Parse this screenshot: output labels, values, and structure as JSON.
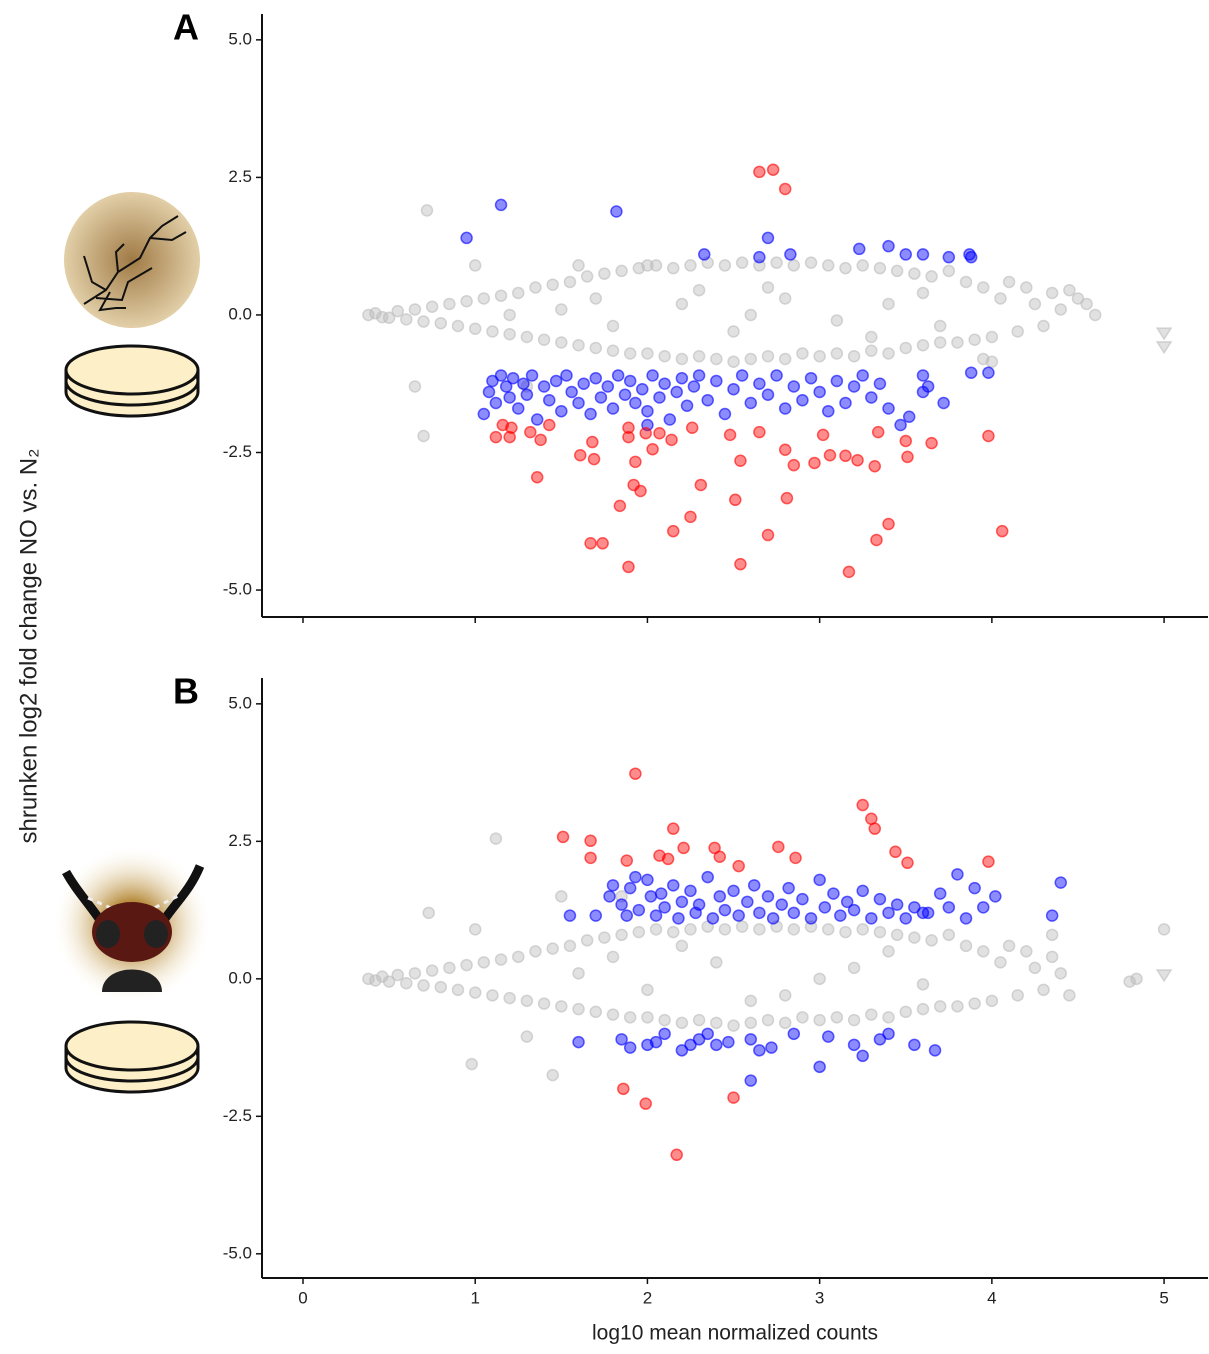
{
  "chart_data": [
    {
      "type": "scatter",
      "panel_label": "A",
      "ylabel": "shrunken log2 fold change NO vs. N₂",
      "xlim": [
        -0.238,
        5.255
      ],
      "ylim": [
        -5.49,
        5.47
      ],
      "xticks": [
        0,
        1,
        2,
        3,
        4,
        5
      ],
      "xtick_labels": false,
      "yticks": [
        {
          "value": 5,
          "label": "5.0"
        },
        2.5,
        {
          "value": 0,
          "label": "0.0"
        },
        -2.5,
        {
          "value": -5,
          "label": "-5.0"
        }
      ],
      "series": [
        {
          "color": "#bdbdbd",
          "x": [
            0.38,
            0.42,
            0.46,
            0.5,
            0.55,
            0.6,
            0.65,
            0.7,
            0.75,
            0.8,
            0.85,
            0.9,
            0.95,
            1.0,
            1.05,
            1.1,
            1.15,
            1.2,
            1.25,
            1.3,
            1.35,
            1.4,
            1.45,
            1.5,
            1.55,
            1.6,
            1.65,
            1.7,
            1.75,
            1.8,
            1.85,
            1.9,
            1.95,
            2.0,
            2.05,
            2.1,
            2.15,
            2.2,
            2.25,
            2.3,
            2.35,
            2.4,
            2.45,
            2.5,
            2.55,
            2.6,
            2.65,
            2.7,
            2.75,
            2.8,
            2.85,
            2.9,
            2.95,
            3.0,
            3.05,
            3.1,
            3.15,
            3.2,
            3.25,
            3.3,
            3.35,
            3.4,
            3.45,
            3.5,
            3.55,
            3.6,
            3.65,
            3.7,
            3.75,
            3.8,
            3.85,
            3.9,
            3.95,
            4.0,
            4.05,
            4.1,
            4.15,
            4.2,
            4.25,
            4.3,
            4.35,
            4.4,
            4.45,
            4.5,
            4.55,
            4.6,
            0.72,
            1.0,
            1.3,
            0.65,
            0.7,
            1.6,
            2.0,
            3.95,
            4.0,
            1.5,
            1.8,
            2.2,
            2.5,
            2.8,
            3.1,
            3.4,
            3.7,
            2.7,
            3.3,
            1.2,
            2.3,
            3.6,
            1.7,
            2.6
          ],
          "values": [
            0.0,
            0.03,
            -0.04,
            -0.05,
            0.07,
            -0.08,
            0.1,
            -0.12,
            0.15,
            -0.15,
            0.2,
            -0.2,
            0.25,
            -0.25,
            0.3,
            -0.3,
            0.35,
            -0.35,
            0.4,
            -0.4,
            0.5,
            -0.45,
            0.55,
            -0.5,
            0.6,
            -0.55,
            0.7,
            -0.6,
            0.75,
            -0.65,
            0.8,
            -0.7,
            0.85,
            -0.7,
            0.9,
            -0.75,
            0.85,
            -0.8,
            0.9,
            -0.75,
            0.95,
            -0.8,
            0.9,
            -0.85,
            0.95,
            -0.8,
            0.9,
            -0.75,
            0.95,
            -0.8,
            0.9,
            -0.7,
            0.95,
            -0.75,
            0.9,
            -0.7,
            0.85,
            -0.75,
            0.9,
            -0.65,
            0.85,
            -0.7,
            0.8,
            -0.6,
            0.75,
            -0.55,
            0.7,
            -0.5,
            0.8,
            -0.5,
            0.6,
            -0.45,
            0.5,
            -0.4,
            0.3,
            0.6,
            -0.3,
            0.5,
            0.2,
            -0.2,
            0.4,
            0.1,
            0.45,
            0.3,
            0.2,
            0.0,
            1.9,
            0.9,
            -1.3,
            -1.3,
            -2.2,
            0.9,
            0.9,
            -0.8,
            -0.85,
            0.1,
            -0.2,
            0.2,
            -0.3,
            0.3,
            -0.1,
            0.2,
            -0.2,
            0.5,
            -0.4,
            0.0,
            0.45,
            0.4,
            0.3,
            0.0
          ]
        },
        {
          "color": "#bdbdbd",
          "marker": "triangle",
          "x": [
            5.0,
            5.0
          ],
          "values": [
            -0.33,
            -0.58
          ]
        },
        {
          "color": "#0000ff",
          "x": [
            0.95,
            1.15,
            1.82,
            2.33,
            2.65,
            2.7,
            2.83,
            3.23,
            3.4,
            3.5,
            3.6,
            3.75,
            3.87,
            3.88,
            1.05,
            1.08,
            1.1,
            1.12,
            1.15,
            1.18,
            1.2,
            1.22,
            1.25,
            1.28,
            1.3,
            1.33,
            1.36,
            1.4,
            1.43,
            1.47,
            1.5,
            1.53,
            1.56,
            1.6,
            1.63,
            1.67,
            1.7,
            1.73,
            1.77,
            1.8,
            1.83,
            1.87,
            1.9,
            1.93,
            1.97,
            2.0,
            2.03,
            2.07,
            2.1,
            2.13,
            2.17,
            2.2,
            2.23,
            2.27,
            2.3,
            2.35,
            2.4,
            2.45,
            2.5,
            2.55,
            2.6,
            2.65,
            2.7,
            2.75,
            2.8,
            2.85,
            2.9,
            2.95,
            3.0,
            3.05,
            3.1,
            3.15,
            3.2,
            3.25,
            3.3,
            3.35,
            3.4,
            3.47,
            3.52,
            3.6,
            3.63,
            3.72,
            3.88,
            3.98,
            3.6,
            2.0
          ],
          "values": [
            1.4,
            2.0,
            1.88,
            1.1,
            1.05,
            1.4,
            1.1,
            1.2,
            1.25,
            1.1,
            1.1,
            1.05,
            1.1,
            1.05,
            -1.8,
            -1.4,
            -1.2,
            -1.6,
            -1.1,
            -1.3,
            -1.5,
            -1.15,
            -1.7,
            -1.25,
            -1.45,
            -1.1,
            -1.9,
            -1.3,
            -1.55,
            -1.2,
            -1.75,
            -1.1,
            -1.4,
            -1.6,
            -1.25,
            -1.8,
            -1.15,
            -1.5,
            -1.3,
            -1.7,
            -1.1,
            -1.45,
            -1.2,
            -1.6,
            -1.35,
            -1.75,
            -1.1,
            -1.5,
            -1.25,
            -1.9,
            -1.4,
            -1.15,
            -1.65,
            -1.3,
            -1.1,
            -1.55,
            -1.2,
            -1.8,
            -1.35,
            -1.1,
            -1.6,
            -1.25,
            -1.45,
            -1.1,
            -1.7,
            -1.3,
            -1.55,
            -1.15,
            -1.4,
            -1.75,
            -1.2,
            -1.6,
            -1.3,
            -1.1,
            -1.5,
            -1.25,
            -1.7,
            -2.0,
            -1.85,
            -1.1,
            -1.3,
            -1.6,
            -1.05,
            -1.05,
            -1.4,
            -2.0
          ]
        },
        {
          "color": "#ff0000",
          "x": [
            2.65,
            2.73,
            2.8,
            1.12,
            1.16,
            1.2,
            1.21,
            1.32,
            1.38,
            1.36,
            1.43,
            1.61,
            1.68,
            1.69,
            1.67,
            1.74,
            1.84,
            1.89,
            1.89,
            1.89,
            1.92,
            1.93,
            1.96,
            1.99,
            2.03,
            2.07,
            2.14,
            2.15,
            2.25,
            2.31,
            2.26,
            2.48,
            2.51,
            2.54,
            2.54,
            2.65,
            2.7,
            2.8,
            2.81,
            2.85,
            2.97,
            3.02,
            3.06,
            3.15,
            3.17,
            3.22,
            3.33,
            3.34,
            3.32,
            3.4,
            3.5,
            3.51,
            3.65,
            3.98,
            4.06
          ],
          "values": [
            2.6,
            2.64,
            2.29,
            -2.22,
            -2.0,
            -2.22,
            -2.05,
            -2.13,
            -2.27,
            -2.95,
            -2.0,
            -2.55,
            -2.31,
            -2.62,
            -4.15,
            -4.15,
            -3.47,
            -2.05,
            -2.22,
            -4.58,
            -3.09,
            -2.67,
            -3.2,
            -2.15,
            -2.44,
            -2.15,
            -2.27,
            -3.93,
            -3.67,
            -3.09,
            -2.05,
            -2.18,
            -3.36,
            -2.65,
            -4.53,
            -2.13,
            -4.0,
            -2.45,
            -3.33,
            -2.73,
            -2.69,
            -2.18,
            -2.55,
            -2.56,
            -4.67,
            -2.64,
            -4.09,
            -2.13,
            -2.75,
            -3.8,
            -2.29,
            -2.58,
            -2.33,
            -2.2,
            -3.93
          ]
        }
      ]
    },
    {
      "type": "scatter",
      "panel_label": "B",
      "xlabel": "log10 mean normalized counts",
      "xlim": [
        -0.238,
        5.255
      ],
      "ylim": [
        -5.44,
        5.47
      ],
      "xticks": [
        0,
        1,
        2,
        3,
        4,
        5
      ],
      "yticks": [
        {
          "value": 5,
          "label": "5.0"
        },
        2.5,
        {
          "value": 0,
          "label": "0.0"
        },
        -2.5,
        {
          "value": -5,
          "label": "-5.0"
        }
      ],
      "series": [
        {
          "color": "#bdbdbd",
          "x": [
            0.38,
            0.42,
            0.46,
            0.5,
            0.55,
            0.6,
            0.65,
            0.7,
            0.75,
            0.8,
            0.85,
            0.9,
            0.95,
            1.0,
            1.05,
            1.1,
            1.15,
            1.2,
            1.25,
            1.3,
            1.35,
            1.4,
            1.45,
            1.5,
            1.55,
            1.6,
            1.65,
            1.7,
            1.75,
            1.8,
            1.85,
            1.9,
            1.95,
            2.0,
            2.05,
            2.1,
            2.15,
            2.2,
            2.25,
            2.3,
            2.35,
            2.4,
            2.45,
            2.5,
            2.55,
            2.6,
            2.65,
            2.7,
            2.75,
            2.8,
            2.85,
            2.9,
            2.95,
            3.0,
            3.05,
            3.1,
            3.15,
            3.2,
            3.25,
            3.3,
            3.35,
            3.4,
            3.45,
            3.5,
            3.55,
            3.6,
            3.65,
            3.7,
            3.75,
            3.8,
            3.85,
            3.9,
            3.95,
            4.0,
            4.05,
            4.1,
            4.15,
            4.2,
            4.25,
            4.3,
            4.35,
            4.4,
            0.73,
            1.12,
            1.0,
            1.5,
            0.98,
            1.45,
            4.8,
            4.84,
            5.0,
            4.45,
            4.35,
            1.3,
            1.85,
            1.6,
            2.0,
            2.4,
            2.8,
            3.2,
            3.6,
            1.8,
            2.6,
            3.0,
            3.4,
            2.2
          ],
          "values": [
            0.0,
            -0.03,
            0.04,
            -0.05,
            0.07,
            -0.08,
            0.1,
            -0.12,
            0.15,
            -0.15,
            0.2,
            -0.2,
            0.25,
            -0.25,
            0.3,
            -0.3,
            0.35,
            -0.35,
            0.4,
            -0.4,
            0.5,
            -0.45,
            0.55,
            -0.5,
            0.6,
            -0.55,
            0.7,
            -0.6,
            0.75,
            -0.65,
            0.8,
            -0.7,
            0.85,
            -0.7,
            0.9,
            -0.75,
            0.85,
            -0.8,
            0.9,
            -0.75,
            0.95,
            -0.8,
            0.9,
            -0.85,
            0.95,
            -0.8,
            0.9,
            -0.75,
            0.95,
            -0.8,
            0.9,
            -0.7,
            0.95,
            -0.75,
            0.9,
            -0.7,
            0.85,
            -0.75,
            0.9,
            -0.65,
            0.85,
            -0.7,
            0.8,
            -0.6,
            0.75,
            -0.55,
            0.7,
            -0.5,
            0.8,
            -0.5,
            0.6,
            -0.45,
            0.5,
            -0.4,
            0.3,
            0.6,
            -0.3,
            0.5,
            0.2,
            -0.2,
            0.4,
            0.1,
            1.2,
            2.55,
            0.9,
            1.5,
            -1.55,
            -1.75,
            -0.05,
            0.0,
            0.9,
            -0.3,
            0.8,
            -1.05,
            1.5,
            0.1,
            -0.2,
            0.3,
            -0.3,
            0.2,
            -0.1,
            0.4,
            -0.4,
            0.0,
            0.5,
            0.6
          ]
        },
        {
          "color": "#bdbdbd",
          "marker": "triangle",
          "x": [
            5.0
          ],
          "values": [
            0.07
          ]
        },
        {
          "color": "#0000ff",
          "x": [
            1.55,
            1.7,
            1.78,
            1.8,
            1.85,
            1.88,
            1.9,
            1.93,
            1.95,
            2.0,
            2.02,
            2.05,
            2.08,
            2.1,
            2.15,
            2.18,
            2.2,
            2.25,
            2.28,
            2.3,
            2.35,
            2.38,
            2.42,
            2.45,
            2.5,
            2.53,
            2.58,
            2.62,
            2.65,
            2.7,
            2.73,
            2.78,
            2.82,
            2.85,
            2.9,
            2.95,
            3.0,
            3.03,
            3.08,
            3.12,
            3.16,
            3.2,
            3.25,
            3.3,
            3.35,
            3.4,
            3.45,
            3.5,
            3.55,
            3.6,
            3.7,
            3.75,
            3.8,
            3.85,
            3.9,
            3.95,
            4.02,
            4.35,
            4.4,
            3.63,
            1.85,
            1.9,
            2.0,
            2.05,
            2.1,
            2.2,
            2.25,
            2.3,
            2.35,
            2.4,
            2.47,
            2.6,
            2.65,
            2.6,
            2.72,
            2.85,
            3.0,
            3.05,
            3.2,
            3.25,
            3.35,
            3.55,
            3.67,
            3.4,
            1.6
          ],
          "values": [
            1.15,
            1.15,
            1.5,
            1.7,
            1.35,
            1.15,
            1.65,
            1.85,
            1.25,
            1.8,
            1.5,
            1.15,
            1.55,
            1.3,
            1.7,
            1.1,
            1.4,
            1.6,
            1.2,
            1.35,
            1.85,
            1.1,
            1.5,
            1.25,
            1.6,
            1.15,
            1.4,
            1.7,
            1.2,
            1.5,
            1.1,
            1.35,
            1.65,
            1.2,
            1.45,
            1.1,
            1.8,
            1.3,
            1.55,
            1.15,
            1.4,
            1.25,
            1.6,
            1.1,
            1.45,
            1.2,
            1.35,
            1.1,
            1.3,
            1.2,
            1.55,
            1.3,
            1.9,
            1.1,
            1.65,
            1.3,
            1.5,
            1.15,
            1.75,
            1.2,
            -1.1,
            -1.25,
            -1.2,
            -1.15,
            -1.0,
            -1.3,
            -1.2,
            -1.1,
            -1.0,
            -1.2,
            -1.15,
            -1.1,
            -1.3,
            -1.85,
            -1.25,
            -1.0,
            -1.6,
            -1.05,
            -1.2,
            -1.4,
            -1.1,
            -1.2,
            -1.3,
            -1.0,
            -1.15
          ]
        },
        {
          "color": "#ff0000",
          "x": [
            1.51,
            1.67,
            1.67,
            1.88,
            1.93,
            2.07,
            2.15,
            2.12,
            2.21,
            2.39,
            2.42,
            2.53,
            2.76,
            2.86,
            3.25,
            3.3,
            3.32,
            3.44,
            3.51,
            3.98,
            1.86,
            1.99,
            2.5,
            2.17
          ],
          "values": [
            2.58,
            2.51,
            2.2,
            2.15,
            3.73,
            2.24,
            2.73,
            2.18,
            2.38,
            2.38,
            2.22,
            2.05,
            2.4,
            2.2,
            3.16,
            2.91,
            2.73,
            2.31,
            2.11,
            2.13,
            -2.0,
            -2.27,
            -2.16,
            -3.2
          ]
        }
      ]
    }
  ]
}
